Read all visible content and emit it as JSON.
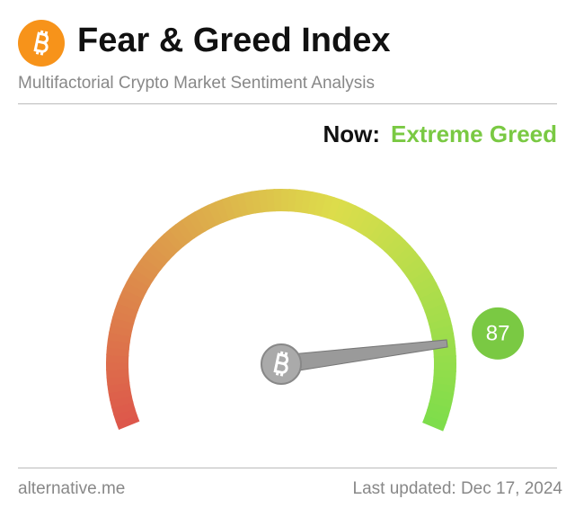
{
  "header": {
    "title": "Fear & Greed Index",
    "subtitle": "Multifactorial Crypto Market Sentiment Analysis"
  },
  "chart_data": {
    "type": "gauge",
    "now_label": "Now:",
    "classification": "Extreme Greed",
    "value": 87,
    "lim": [
      0,
      100
    ],
    "color": "#7ac943"
  },
  "footer": {
    "source": "alternative.me",
    "updated": "Last updated: Dec 17, 2024"
  }
}
